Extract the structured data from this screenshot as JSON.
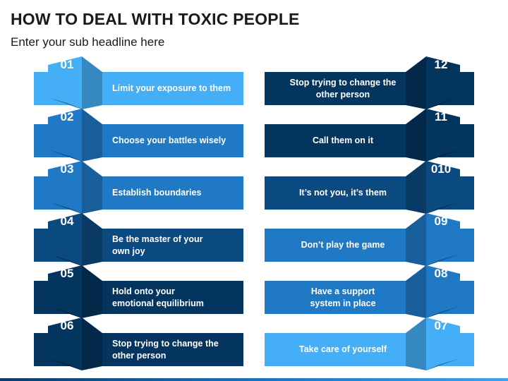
{
  "title": "HOW TO DEAL WITH TOXIC PEOPLE",
  "subtitle": "Enter your sub headline here",
  "colors": {
    "light": "#44aef6",
    "mid": "#1f79c5",
    "navy": "#0a4a80",
    "deep": "#04355f"
  },
  "left_items": [
    {
      "num": "01",
      "text": "Limit your exposure to them",
      "tone": "light"
    },
    {
      "num": "02",
      "text": "Choose your battles wisely",
      "tone": "mid"
    },
    {
      "num": "03",
      "text": "Establish boundaries",
      "tone": "mid"
    },
    {
      "num": "04",
      "text": "Be the master of your\nown joy",
      "tone": "navy"
    },
    {
      "num": "05",
      "text": "Hold onto your\nemotional equilibrium",
      "tone": "deep"
    },
    {
      "num": "06",
      "text": "Stop trying to change the\nother person",
      "tone": "deep"
    }
  ],
  "right_items": [
    {
      "num": "12",
      "text": "Stop trying to change the\nother person",
      "tone": "deep"
    },
    {
      "num": "11",
      "text": "Call them on it",
      "tone": "deep"
    },
    {
      "num": "010",
      "text": "It’s not you, it’s them",
      "tone": "navy"
    },
    {
      "num": "09",
      "text": "Don’t play the game",
      "tone": "mid"
    },
    {
      "num": "08",
      "text": "Have a support\nsystem in place",
      "tone": "mid"
    },
    {
      "num": "07",
      "text": "Take care of yourself",
      "tone": "light"
    }
  ]
}
